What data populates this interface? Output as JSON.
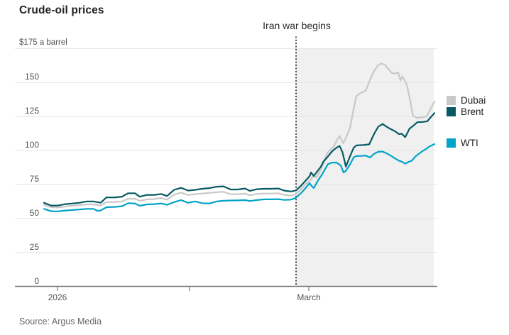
{
  "header": {
    "title": "Crude-oil prices"
  },
  "source": {
    "label": "Source: Argus Media"
  },
  "chart_data": {
    "type": "line",
    "title": "Crude-oil prices",
    "unit_label": "$175 a barrel",
    "ylim": [
      0,
      175
    ],
    "grid": true,
    "legend_position": "right",
    "colors": {
      "shade": "#f0f0f0",
      "gridline": "#e4e4e4",
      "axis": "#787878",
      "annotation_line": "#1a1a1a"
    },
    "yticks": [
      {
        "value": 0,
        "label": "0"
      },
      {
        "value": 25,
        "label": "25"
      },
      {
        "value": 50,
        "label": "50"
      },
      {
        "value": 75,
        "label": "75"
      },
      {
        "value": 100,
        "label": "100"
      },
      {
        "value": 125,
        "label": "125"
      },
      {
        "value": 150,
        "label": "150"
      },
      {
        "value": 175,
        "label": "$175 a barrel",
        "align": "left"
      }
    ],
    "xticks": [
      {
        "f": 0.0345,
        "label": "2026"
      },
      {
        "f": 0.3727,
        "label": ""
      },
      {
        "f": 0.6782,
        "label": "March"
      }
    ],
    "annotation": {
      "label": "Iran war begins",
      "f": 0.6455
    },
    "shaded_region": {
      "from": 0.6455,
      "to": 0.998
    },
    "series": [
      {
        "name": "Dubai",
        "color": "#c8c8c8",
        "points": [
          [
            0,
            60
          ],
          [
            0.018,
            58.3
          ],
          [
            0.036,
            58
          ],
          [
            0.055,
            58.8
          ],
          [
            0.073,
            59.3
          ],
          [
            0.091,
            59.8
          ],
          [
            0.109,
            60.3
          ],
          [
            0.127,
            60.3
          ],
          [
            0.145,
            59.5
          ],
          [
            0.16,
            62
          ],
          [
            0.182,
            62
          ],
          [
            0.2,
            62.5
          ],
          [
            0.215,
            64.5
          ],
          [
            0.233,
            64.5
          ],
          [
            0.245,
            63
          ],
          [
            0.264,
            64
          ],
          [
            0.282,
            64.3
          ],
          [
            0.3,
            65
          ],
          [
            0.315,
            63.8
          ],
          [
            0.333,
            67.5
          ],
          [
            0.351,
            69
          ],
          [
            0.369,
            67.3
          ],
          [
            0.387,
            67.8
          ],
          [
            0.405,
            68.3
          ],
          [
            0.424,
            68.8
          ],
          [
            0.442,
            69.3
          ],
          [
            0.46,
            69.6
          ],
          [
            0.478,
            67.8
          ],
          [
            0.496,
            67.8
          ],
          [
            0.515,
            68.3
          ],
          [
            0.527,
            67
          ],
          [
            0.545,
            68
          ],
          [
            0.564,
            68.3
          ],
          [
            0.582,
            68.3
          ],
          [
            0.6,
            68.5
          ],
          [
            0.615,
            67.3
          ],
          [
            0.633,
            66.8
          ],
          [
            0.645,
            68
          ],
          [
            0.658,
            71.5
          ],
          [
            0.669,
            75
          ],
          [
            0.68,
            77.5
          ],
          [
            0.691,
            81.5
          ],
          [
            0.698,
            80
          ],
          [
            0.709,
            86
          ],
          [
            0.715,
            90
          ],
          [
            0.724,
            97.5
          ],
          [
            0.733,
            100.5
          ],
          [
            0.742,
            102.8
          ],
          [
            0.751,
            108
          ],
          [
            0.757,
            110.6
          ],
          [
            0.766,
            105.4
          ],
          [
            0.773,
            109
          ],
          [
            0.784,
            117
          ],
          [
            0.791,
            128
          ],
          [
            0.8,
            140
          ],
          [
            0.811,
            142.3
          ],
          [
            0.824,
            144
          ],
          [
            0.835,
            152
          ],
          [
            0.845,
            158.5
          ],
          [
            0.855,
            162.5
          ],
          [
            0.864,
            164
          ],
          [
            0.873,
            163
          ],
          [
            0.882,
            160
          ],
          [
            0.891,
            157
          ],
          [
            0.9,
            156.5
          ],
          [
            0.907,
            157.5
          ],
          [
            0.913,
            151.5
          ],
          [
            0.918,
            154.5
          ],
          [
            0.929,
            148.5
          ],
          [
            0.938,
            136.5
          ],
          [
            0.945,
            125.5
          ],
          [
            0.955,
            124
          ],
          [
            0.964,
            124.3
          ],
          [
            0.973,
            124.5
          ],
          [
            0.98,
            125
          ],
          [
            0.989,
            130
          ],
          [
            1,
            136
          ]
        ]
      },
      {
        "name": "WTI",
        "color": "#00a4c6",
        "points": [
          [
            0,
            57
          ],
          [
            0.018,
            55.3
          ],
          [
            0.036,
            55.2
          ],
          [
            0.055,
            55.8
          ],
          [
            0.073,
            56.2
          ],
          [
            0.091,
            56.6
          ],
          [
            0.109,
            57
          ],
          [
            0.127,
            57
          ],
          [
            0.136,
            55.6
          ],
          [
            0.145,
            55.8
          ],
          [
            0.16,
            58.2
          ],
          [
            0.182,
            58.5
          ],
          [
            0.2,
            59
          ],
          [
            0.215,
            61.2
          ],
          [
            0.233,
            61
          ],
          [
            0.245,
            59.3
          ],
          [
            0.264,
            60.3
          ],
          [
            0.282,
            60.5
          ],
          [
            0.3,
            61
          ],
          [
            0.315,
            60
          ],
          [
            0.333,
            62
          ],
          [
            0.351,
            63.5
          ],
          [
            0.369,
            61.5
          ],
          [
            0.387,
            62.5
          ],
          [
            0.405,
            61.2
          ],
          [
            0.424,
            61
          ],
          [
            0.442,
            62.5
          ],
          [
            0.46,
            63
          ],
          [
            0.478,
            63.2
          ],
          [
            0.496,
            63.3
          ],
          [
            0.515,
            63.5
          ],
          [
            0.527,
            62.8
          ],
          [
            0.545,
            63.5
          ],
          [
            0.564,
            64
          ],
          [
            0.582,
            64
          ],
          [
            0.6,
            64.2
          ],
          [
            0.615,
            63.6
          ],
          [
            0.633,
            63.8
          ],
          [
            0.645,
            65.2
          ],
          [
            0.658,
            68.5
          ],
          [
            0.669,
            72
          ],
          [
            0.68,
            75.9
          ],
          [
            0.688,
            73
          ],
          [
            0.691,
            72.4
          ],
          [
            0.702,
            78
          ],
          [
            0.709,
            81
          ],
          [
            0.715,
            83.8
          ],
          [
            0.727,
            89.8
          ],
          [
            0.736,
            91
          ],
          [
            0.749,
            91.1
          ],
          [
            0.76,
            89
          ],
          [
            0.767,
            83.8
          ],
          [
            0.773,
            85
          ],
          [
            0.784,
            89.8
          ],
          [
            0.793,
            95
          ],
          [
            0.8,
            95.9
          ],
          [
            0.813,
            96
          ],
          [
            0.824,
            96.3
          ],
          [
            0.835,
            94.8
          ],
          [
            0.845,
            97.5
          ],
          [
            0.856,
            99
          ],
          [
            0.867,
            99.2
          ],
          [
            0.88,
            97.5
          ],
          [
            0.889,
            96
          ],
          [
            0.898,
            94.3
          ],
          [
            0.909,
            92.5
          ],
          [
            0.916,
            91.8
          ],
          [
            0.925,
            90.3
          ],
          [
            0.933,
            91.5
          ],
          [
            0.942,
            92.5
          ],
          [
            0.951,
            95.5
          ],
          [
            0.96,
            97.5
          ],
          [
            0.969,
            99.4
          ],
          [
            0.978,
            101
          ],
          [
            0.987,
            102.9
          ],
          [
            1,
            104.7
          ]
        ]
      },
      {
        "name": "Brent",
        "color": "#075a64",
        "points": [
          [
            0,
            61.5
          ],
          [
            0.018,
            59.5
          ],
          [
            0.036,
            59.5
          ],
          [
            0.055,
            60.5
          ],
          [
            0.073,
            61
          ],
          [
            0.091,
            61.5
          ],
          [
            0.109,
            62.5
          ],
          [
            0.127,
            62.5
          ],
          [
            0.145,
            61.5
          ],
          [
            0.16,
            65.5
          ],
          [
            0.182,
            65.5
          ],
          [
            0.2,
            66
          ],
          [
            0.215,
            68.5
          ],
          [
            0.233,
            68.5
          ],
          [
            0.245,
            66
          ],
          [
            0.264,
            67.3
          ],
          [
            0.282,
            67.3
          ],
          [
            0.3,
            68
          ],
          [
            0.315,
            66.5
          ],
          [
            0.333,
            71
          ],
          [
            0.351,
            72.5
          ],
          [
            0.369,
            70.5
          ],
          [
            0.387,
            71
          ],
          [
            0.405,
            71.8
          ],
          [
            0.424,
            72.3
          ],
          [
            0.442,
            73.3
          ],
          [
            0.46,
            73.6
          ],
          [
            0.478,
            71.3
          ],
          [
            0.496,
            71.3
          ],
          [
            0.515,
            72
          ],
          [
            0.527,
            70.3
          ],
          [
            0.545,
            71.5
          ],
          [
            0.564,
            71.8
          ],
          [
            0.582,
            71.8
          ],
          [
            0.6,
            72
          ],
          [
            0.615,
            70.5
          ],
          [
            0.633,
            69.8
          ],
          [
            0.645,
            70.6
          ],
          [
            0.658,
            74
          ],
          [
            0.669,
            77.5
          ],
          [
            0.68,
            81
          ],
          [
            0.684,
            83.8
          ],
          [
            0.691,
            81.2
          ],
          [
            0.702,
            85.5
          ],
          [
            0.709,
            88
          ],
          [
            0.715,
            91.6
          ],
          [
            0.727,
            95.5
          ],
          [
            0.738,
            99.5
          ],
          [
            0.749,
            102
          ],
          [
            0.757,
            103.3
          ],
          [
            0.764,
            99
          ],
          [
            0.77,
            92
          ],
          [
            0.773,
            88.1
          ],
          [
            0.784,
            95.9
          ],
          [
            0.793,
            102
          ],
          [
            0.8,
            103.7
          ],
          [
            0.818,
            104
          ],
          [
            0.833,
            104.5
          ],
          [
            0.845,
            112
          ],
          [
            0.856,
            117.5
          ],
          [
            0.867,
            119.5
          ],
          [
            0.88,
            117
          ],
          [
            0.889,
            115.5
          ],
          [
            0.898,
            114.3
          ],
          [
            0.909,
            112
          ],
          [
            0.916,
            112.3
          ],
          [
            0.925,
            109.8
          ],
          [
            0.936,
            116
          ],
          [
            0.947,
            118.5
          ],
          [
            0.956,
            120.8
          ],
          [
            0.971,
            121
          ],
          [
            0.982,
            121.5
          ],
          [
            0.989,
            124
          ],
          [
            1,
            127.5
          ]
        ]
      }
    ],
    "legend": [
      {
        "label": "Dubai",
        "color": "#c8c8c8"
      },
      {
        "label": "Brent",
        "color": "#075a64"
      },
      {
        "label": "WTI",
        "color": "#00a4c6"
      }
    ]
  }
}
